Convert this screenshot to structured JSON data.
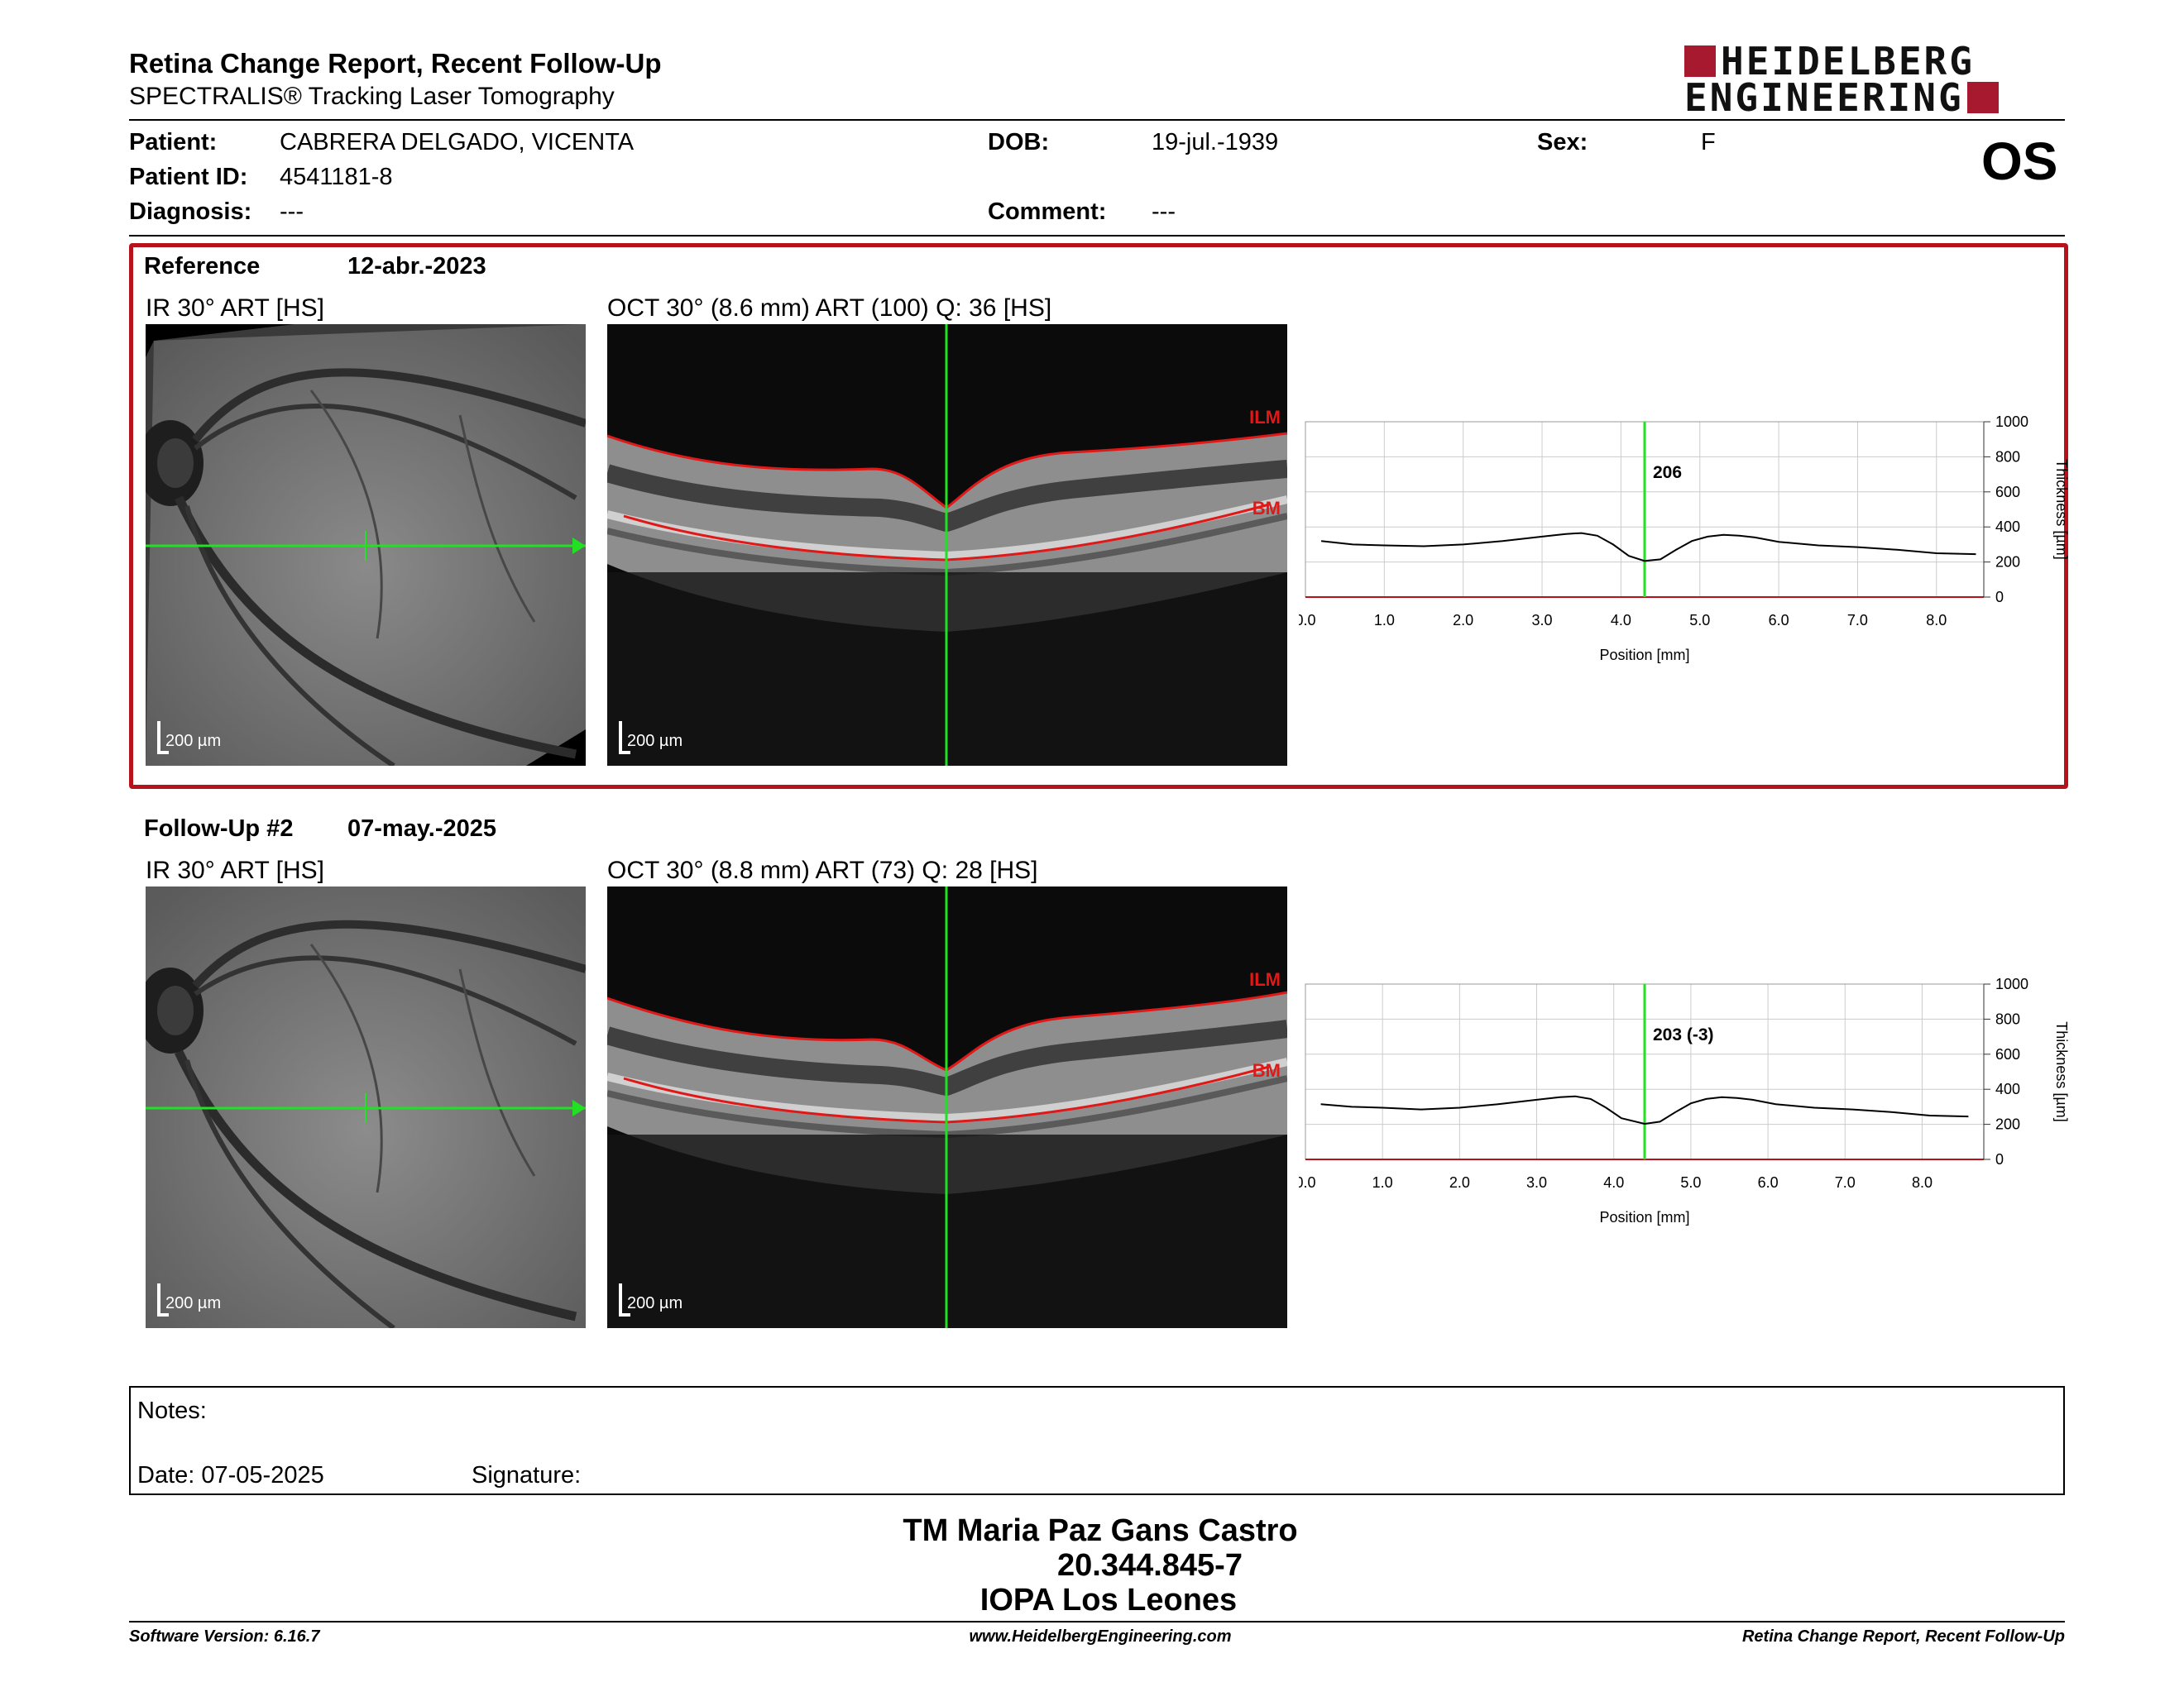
{
  "header": {
    "title": "Retina Change Report, Recent Follow-Up",
    "subtitle": "SPECTRALIS® Tracking Laser Tomography",
    "logo_line1": "HEIDELBERG",
    "logo_line2": "ENGINEERING",
    "brand_color": "#a6192e"
  },
  "patient": {
    "patient_label": "Patient:",
    "patient_value": "CABRERA DELGADO, VICENTA",
    "id_label": "Patient ID:",
    "id_value": "4541181-8",
    "diagnosis_label": "Diagnosis:",
    "diagnosis_value": "---",
    "dob_label": "DOB:",
    "dob_value": "19-jul.-1939",
    "comment_label": "Comment:",
    "comment_value": "---",
    "sex_label": "Sex:",
    "sex_value": "F",
    "eye": "OS"
  },
  "reference": {
    "label": "Reference",
    "date": "12-abr.-2023",
    "ir_caption": "IR 30° ART [HS]",
    "oct_caption": "OCT 30° (8.6 mm) ART (100) Q: 36 [HS]",
    "scale_ir": "200 µm",
    "scale_oct": "200 µm",
    "ilm_label": "ILM",
    "bm_label": "BM",
    "box_color": "#b5121b"
  },
  "followup": {
    "label": "Follow-Up #2",
    "date": "07-may.-2025",
    "ir_caption": "IR 30° ART [HS]",
    "oct_caption": "OCT 30° (8.8 mm) ART (73) Q: 28 [HS]",
    "scale_ir": "200 µm",
    "scale_oct": "200 µm",
    "ilm_label": "ILM",
    "bm_label": "BM"
  },
  "chart_data": [
    {
      "type": "line",
      "xlabel": "Position [mm]",
      "ylabel": "Thickness [µm]",
      "xlim": [
        0,
        8.6
      ],
      "ylim": [
        0,
        1000
      ],
      "x_ticks": [
        "0.0",
        "1.0",
        "2.0",
        "3.0",
        "4.0",
        "5.0",
        "6.0",
        "7.0",
        "8.0"
      ],
      "y_ticks": [
        "0",
        "200",
        "400",
        "600",
        "800",
        "1000"
      ],
      "grid": true,
      "marker_position": 4.3,
      "marker_label": "206",
      "x": [
        0.2,
        0.6,
        1.0,
        1.5,
        2.0,
        2.5,
        3.0,
        3.3,
        3.5,
        3.7,
        3.9,
        4.1,
        4.3,
        4.5,
        4.7,
        4.9,
        5.1,
        5.3,
        5.5,
        5.7,
        6.0,
        6.5,
        7.0,
        7.5,
        8.0,
        8.5
      ],
      "y": [
        320,
        300,
        295,
        290,
        300,
        320,
        345,
        360,
        365,
        350,
        300,
        235,
        206,
        215,
        270,
        320,
        345,
        355,
        350,
        340,
        315,
        295,
        285,
        270,
        250,
        245
      ]
    },
    {
      "type": "line",
      "xlabel": "Position [mm]",
      "ylabel": "Thickness [µm]",
      "xlim": [
        0,
        8.8
      ],
      "ylim": [
        0,
        1000
      ],
      "x_ticks": [
        "0.0",
        "1.0",
        "2.0",
        "3.0",
        "4.0",
        "5.0",
        "6.0",
        "7.0",
        "8.0"
      ],
      "y_ticks": [
        "0",
        "200",
        "400",
        "600",
        "800",
        "1000"
      ],
      "grid": true,
      "marker_position": 4.4,
      "marker_label": "203 (-3)",
      "x": [
        0.2,
        0.6,
        1.0,
        1.5,
        2.0,
        2.5,
        3.0,
        3.3,
        3.5,
        3.7,
        3.9,
        4.1,
        4.4,
        4.6,
        4.8,
        5.0,
        5.2,
        5.4,
        5.6,
        5.8,
        6.1,
        6.6,
        7.1,
        7.6,
        8.1,
        8.6
      ],
      "y": [
        315,
        300,
        295,
        285,
        295,
        315,
        340,
        355,
        360,
        345,
        295,
        235,
        203,
        215,
        270,
        320,
        345,
        355,
        350,
        340,
        315,
        295,
        285,
        270,
        250,
        245
      ]
    }
  ],
  "notes": {
    "notes_label": "Notes:",
    "date_label": "Date: 07-05-2025",
    "signature_label": "Signature:"
  },
  "signer": {
    "name": "TM Maria Paz Gans Castro",
    "id": "20.344.845-7",
    "org": "IOPA Los Leones"
  },
  "footer": {
    "software": "Software Version: 6.16.7",
    "website": "www.HeidelbergEngineering.com",
    "report_name": "Retina Change Report, Recent Follow-Up"
  }
}
